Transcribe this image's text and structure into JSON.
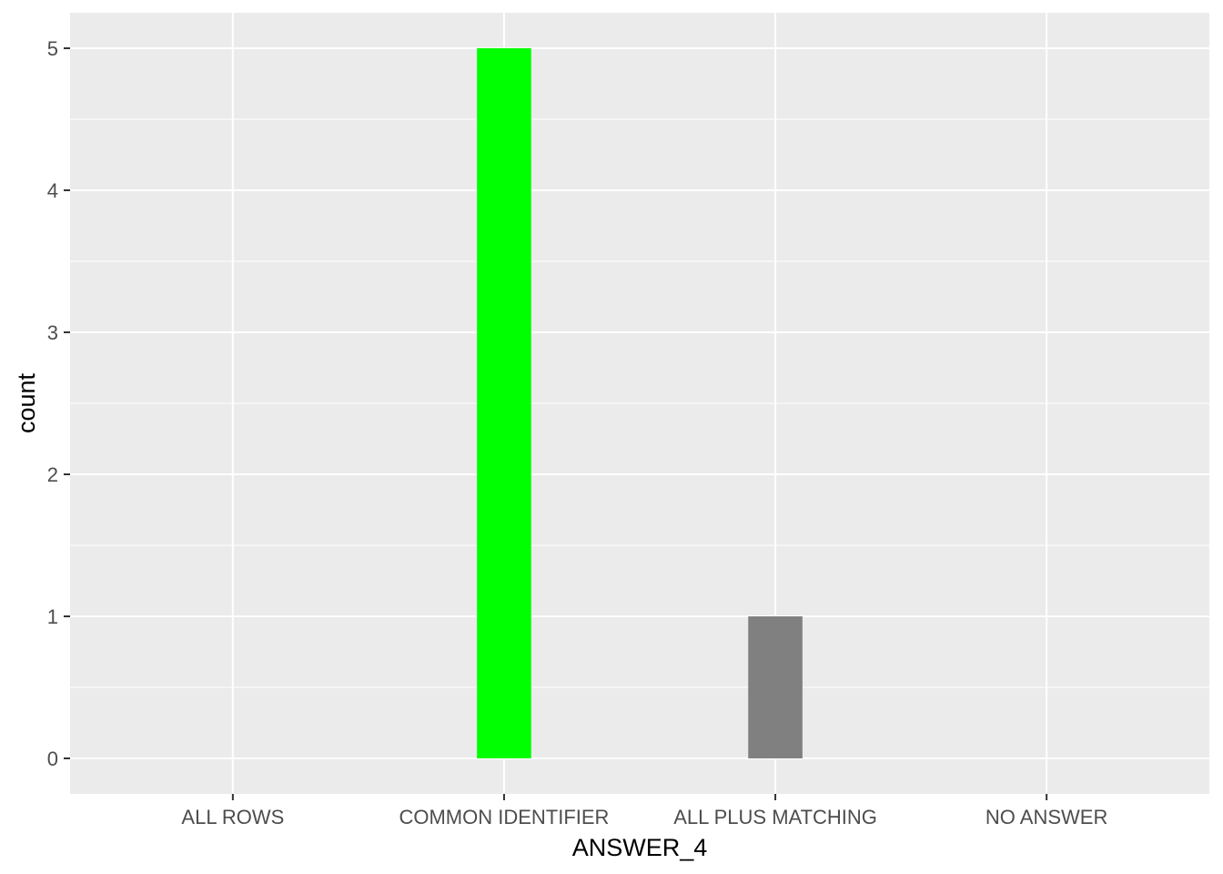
{
  "chart_data": {
    "type": "bar",
    "categories": [
      "ALL ROWS",
      "COMMON IDENTIFIER",
      "ALL PLUS MATCHING",
      "NO ANSWER"
    ],
    "values": [
      0,
      5,
      1,
      0
    ],
    "bar_colors": [
      "#808080",
      "#00FF00",
      "#808080",
      "#808080"
    ],
    "xlabel": "ANSWER_4",
    "ylabel": "count",
    "ylim": [
      -0.25,
      5.25
    ],
    "yticks": [
      0,
      1,
      2,
      3,
      4,
      5
    ],
    "panel_background": "#EBEBEB",
    "grid": true
  }
}
